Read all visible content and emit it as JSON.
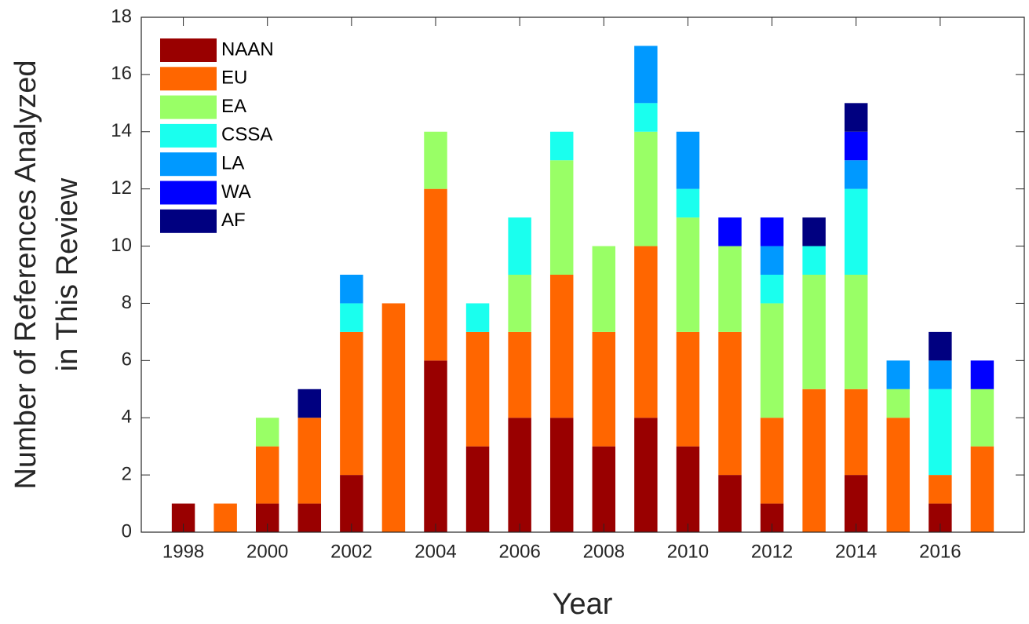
{
  "chart_data": {
    "type": "stacked_bar",
    "xlabel": "Year",
    "ylabel": [
      "Number of References Analyzed",
      "in This Review"
    ],
    "x": [
      1998,
      1999,
      2000,
      2001,
      2002,
      2003,
      2004,
      2005,
      2006,
      2007,
      2008,
      2009,
      2010,
      2011,
      2012,
      2013,
      2014,
      2015,
      2016,
      2017
    ],
    "series": [
      {
        "name": "NAAN",
        "color": "#990000",
        "values": [
          1,
          0,
          1,
          1,
          2,
          0,
          6,
          3,
          4,
          4,
          3,
          4,
          3,
          2,
          1,
          0,
          2,
          0,
          1,
          0
        ]
      },
      {
        "name": "EU",
        "color": "#ff6600",
        "values": [
          0,
          1,
          2,
          3,
          5,
          8,
          6,
          4,
          3,
          5,
          4,
          6,
          4,
          5,
          3,
          5,
          3,
          4,
          1,
          3
        ]
      },
      {
        "name": "EA",
        "color": "#99ff66",
        "values": [
          0,
          0,
          1,
          0,
          0,
          0,
          2,
          0,
          2,
          4,
          3,
          4,
          4,
          3,
          4,
          4,
          4,
          1,
          0,
          2
        ]
      },
      {
        "name": "CSSA",
        "color": "#1affee",
        "values": [
          0,
          0,
          0,
          0,
          1,
          0,
          0,
          1,
          2,
          1,
          0,
          1,
          1,
          0,
          1,
          1,
          3,
          0,
          3,
          0
        ]
      },
      {
        "name": "LA",
        "color": "#0099ff",
        "values": [
          0,
          0,
          0,
          0,
          1,
          0,
          0,
          0,
          0,
          0,
          0,
          2,
          2,
          0,
          1,
          0,
          1,
          1,
          1,
          0
        ]
      },
      {
        "name": "WA",
        "color": "#0000ff",
        "values": [
          0,
          0,
          0,
          0,
          0,
          0,
          0,
          0,
          0,
          0,
          0,
          0,
          0,
          1,
          1,
          0,
          1,
          0,
          0,
          1
        ]
      },
      {
        "name": "AF",
        "color": "#000080",
        "values": [
          0,
          0,
          0,
          1,
          0,
          0,
          0,
          0,
          0,
          0,
          0,
          0,
          0,
          0,
          0,
          1,
          1,
          0,
          1,
          0
        ]
      }
    ],
    "xlim": [
      1997,
      2018
    ],
    "xticks": [
      1998,
      2000,
      2002,
      2004,
      2006,
      2008,
      2010,
      2012,
      2014,
      2016
    ],
    "ylim": [
      0,
      18
    ],
    "yticks": [
      0,
      2,
      4,
      6,
      8,
      10,
      12,
      14,
      16,
      18
    ],
    "grid": false,
    "legend": "upper-left"
  }
}
